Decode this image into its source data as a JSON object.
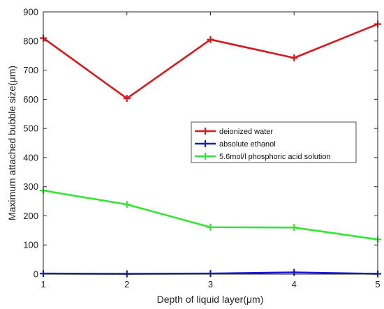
{
  "chart_data": {
    "type": "line",
    "title": "",
    "xlabel": "Depth of liquid layer(μm)",
    "ylabel": "Maximum attached bubble size(μm)",
    "x": [
      1,
      2,
      3,
      4,
      5
    ],
    "xlim": [
      1,
      5
    ],
    "ylim": [
      0,
      900
    ],
    "xticks": [
      "1",
      "2",
      "3",
      "4",
      "5"
    ],
    "yticks": [
      "0",
      "100",
      "200",
      "300",
      "400",
      "500",
      "600",
      "700",
      "800",
      "900"
    ],
    "grid": false,
    "legend_position": "center-right",
    "series": [
      {
        "name": "deionized water",
        "color": "#d7191c",
        "values": [
          810,
          603,
          805,
          742,
          858
        ]
      },
      {
        "name": "absolute ethanol",
        "color": "#1a1ad0",
        "values": [
          2,
          1,
          2,
          6,
          1
        ]
      },
      {
        "name": "5.6mol/l phosphoric acid solution",
        "color": "#33e633",
        "values": [
          287,
          239,
          161,
          160,
          119
        ]
      }
    ]
  }
}
